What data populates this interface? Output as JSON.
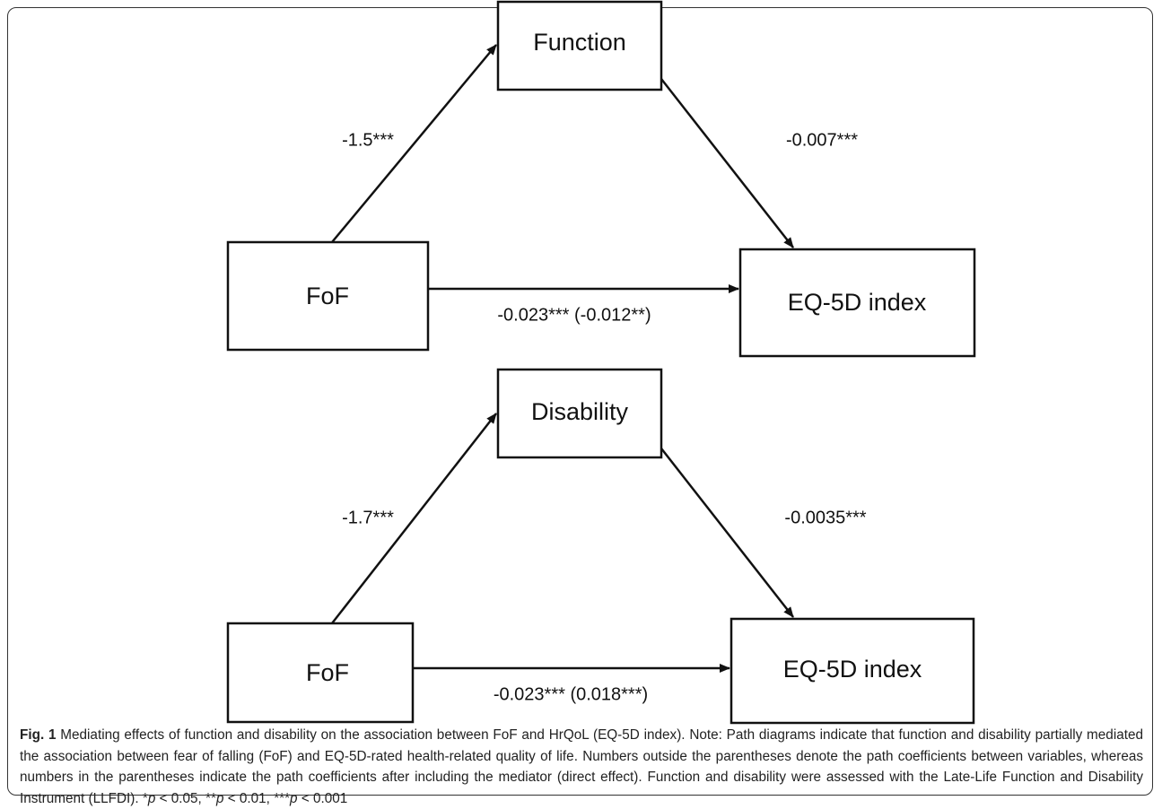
{
  "diagrams": [
    {
      "mediator": "Function",
      "predictor": "FoF",
      "outcome": "EQ-5D index",
      "path_a": "-1.5***",
      "path_b": "-0.007***",
      "path_c": "-0.023*** (-0.012**)"
    },
    {
      "mediator": "Disability",
      "predictor": "FoF",
      "outcome": "EQ-5D index",
      "path_a": "-1.7***",
      "path_b": "-0.0035***",
      "path_c": "-0.023*** (0.018***)"
    }
  ],
  "caption": {
    "label": "Fig. 1",
    "text": "Mediating effects of function and disability on the association between FoF and HrQoL (EQ-5D index). Note: Path diagrams indicate that function and disability partially mediated the association between fear of falling (FoF) and EQ-5D-rated health-related quality of life. Numbers outside the parentheses denote the path coefficients between variables, whereas numbers in the parentheses indicate the path coefficients after including the mediator (direct effect). Function and disability were assessed with the Late-Life Function and Disability Instrument (LLFDI).",
    "significance": [
      {
        "stars": "*",
        "symbol": "p",
        "threshold": "< 0.05,"
      },
      {
        "stars": "**",
        "symbol": "p",
        "threshold": "< 0.01,"
      },
      {
        "stars": "***",
        "symbol": "p",
        "threshold": "< 0.001"
      }
    ]
  }
}
